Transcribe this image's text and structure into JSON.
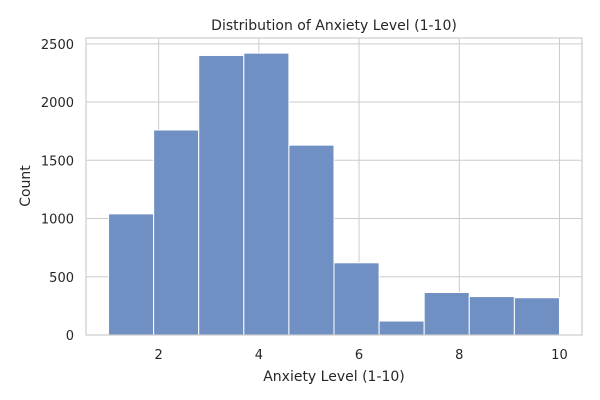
{
  "chart_data": {
    "type": "bar",
    "subtype": "histogram",
    "title": "Distribution of Anxiety Level (1-10)",
    "xlabel": "Anxiety Level (1-10)",
    "ylabel": "Count",
    "xlim": [
      0.55,
      10.45
    ],
    "ylim": [
      0,
      2550
    ],
    "xticks": [
      2,
      4,
      6,
      8,
      10
    ],
    "yticks": [
      0,
      500,
      1000,
      1500,
      2000,
      2500
    ],
    "bin_edges": [
      1.0,
      1.9,
      2.8,
      3.7,
      4.6,
      5.5,
      6.4,
      7.3,
      8.2,
      9.1,
      10.0
    ],
    "values": [
      1040,
      1760,
      2400,
      2420,
      1630,
      620,
      120,
      365,
      330,
      320
    ],
    "bar_color": "#7090c4",
    "grid": true,
    "legend": "none"
  }
}
